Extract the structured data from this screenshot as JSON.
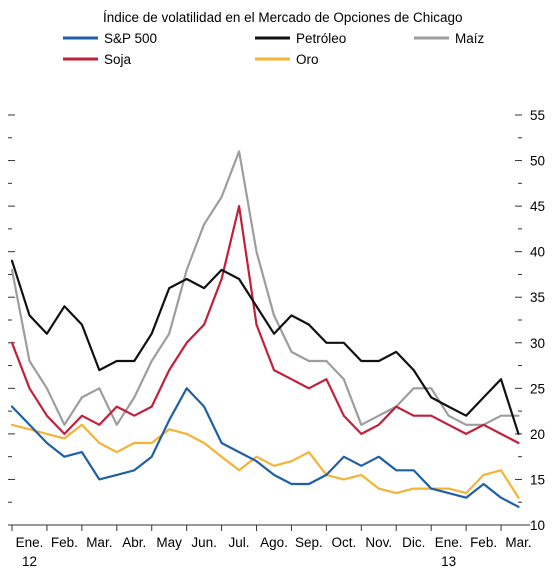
{
  "chart_data": {
    "type": "line",
    "title": "Índice de volatilidad en el Mercado de Opciones de Chicago",
    "xlabel": "",
    "ylabel": "",
    "x_tick_labels": [
      "Ene.",
      "Feb.",
      "Mar.",
      "Abr.",
      "May",
      "Jun.",
      "Jul.",
      "Ago.",
      "Sep.",
      "Oct.",
      "Nov.",
      "Dic.",
      "Ene.",
      "Feb.",
      "Mar."
    ],
    "x_year_labels": [
      {
        "month_index": 0,
        "label": "12"
      },
      {
        "month_index": 12,
        "label": "13"
      }
    ],
    "x_range_months": [
      0,
      14.6
    ],
    "y_ticks": [
      10,
      15,
      20,
      25,
      30,
      35,
      40,
      45,
      50,
      55
    ],
    "ylim": [
      10,
      55
    ],
    "y_axis_side": "right",
    "grid": false,
    "legend": "top",
    "x_units": "months since start of Jan. 2012",
    "series": [
      {
        "name": "S&P 500",
        "color": "#1f5fa8",
        "x": [
          0,
          0.5,
          1,
          1.5,
          2,
          2.5,
          3,
          3.5,
          4,
          4.5,
          5,
          5.5,
          6,
          6.5,
          7,
          7.5,
          8,
          8.5,
          9,
          9.5,
          10,
          10.5,
          11,
          11.5,
          12,
          12.5,
          13,
          13.5,
          14,
          14.5
        ],
        "y": [
          23,
          21,
          19,
          17.5,
          18,
          15,
          15.5,
          16,
          17.5,
          21.5,
          25,
          23,
          19,
          18,
          17,
          15.5,
          14.5,
          14.5,
          15.5,
          17.5,
          16.5,
          17.5,
          16,
          16,
          14,
          13.5,
          13,
          14.5,
          13,
          12
        ]
      },
      {
        "name": "Petróleo",
        "color": "#111111",
        "x": [
          0,
          0.5,
          1,
          1.5,
          2,
          2.5,
          3,
          3.5,
          4,
          4.5,
          5,
          5.5,
          6,
          6.5,
          7,
          7.5,
          8,
          8.5,
          9,
          9.5,
          10,
          10.5,
          11,
          11.5,
          12,
          12.5,
          13,
          13.5,
          14,
          14.5
        ],
        "y": [
          39,
          33,
          31,
          34,
          32,
          27,
          28,
          28,
          31,
          36,
          37,
          36,
          38,
          37,
          34,
          31,
          33,
          32,
          30,
          30,
          28,
          28,
          29,
          27,
          24,
          23,
          22,
          24,
          26,
          20
        ]
      },
      {
        "name": "Maíz",
        "color": "#9d9d9d",
        "x": [
          0,
          0.5,
          1,
          1.5,
          2,
          2.5,
          3,
          3.5,
          4,
          4.5,
          5,
          5.5,
          6,
          6.5,
          7,
          7.5,
          8,
          8.5,
          9,
          9.5,
          10,
          10.5,
          11,
          11.5,
          12,
          12.5,
          13,
          13.5,
          14,
          14.5
        ],
        "y": [
          38,
          28,
          25,
          21,
          24,
          25,
          21,
          24,
          28,
          31,
          38,
          43,
          46,
          51,
          40,
          33,
          29,
          28,
          28,
          26,
          21,
          22,
          23,
          25,
          25,
          22,
          21,
          21,
          22,
          22
        ]
      },
      {
        "name": "Soja",
        "color": "#c21f3a",
        "x": [
          0,
          0.5,
          1,
          1.5,
          2,
          2.5,
          3,
          3.5,
          4,
          4.5,
          5,
          5.5,
          6,
          6.5,
          7,
          7.5,
          8,
          8.5,
          9,
          9.5,
          10,
          10.5,
          11,
          11.5,
          12,
          12.5,
          13,
          13.5,
          14,
          14.5
        ],
        "y": [
          30,
          25,
          22,
          20,
          22,
          21,
          23,
          22,
          23,
          27,
          30,
          32,
          37,
          45,
          32,
          27,
          26,
          25,
          26,
          22,
          20,
          21,
          23,
          22,
          22,
          21,
          20,
          21,
          20,
          19
        ]
      },
      {
        "name": "Oro",
        "color": "#f5b335",
        "x": [
          0,
          0.5,
          1,
          1.5,
          2,
          2.5,
          3,
          3.5,
          4,
          4.5,
          5,
          5.5,
          6,
          6.5,
          7,
          7.5,
          8,
          8.5,
          9,
          9.5,
          10,
          10.5,
          11,
          11.5,
          12,
          12.5,
          13,
          13.5,
          14,
          14.5
        ],
        "y": [
          21,
          20.5,
          20,
          19.5,
          21,
          19,
          18,
          19,
          19,
          20.5,
          20,
          19,
          17.5,
          16,
          17.5,
          16.5,
          17,
          18,
          15.5,
          15,
          15.5,
          14,
          13.5,
          14,
          14,
          14,
          13.5,
          15.5,
          16,
          13
        ]
      }
    ]
  }
}
